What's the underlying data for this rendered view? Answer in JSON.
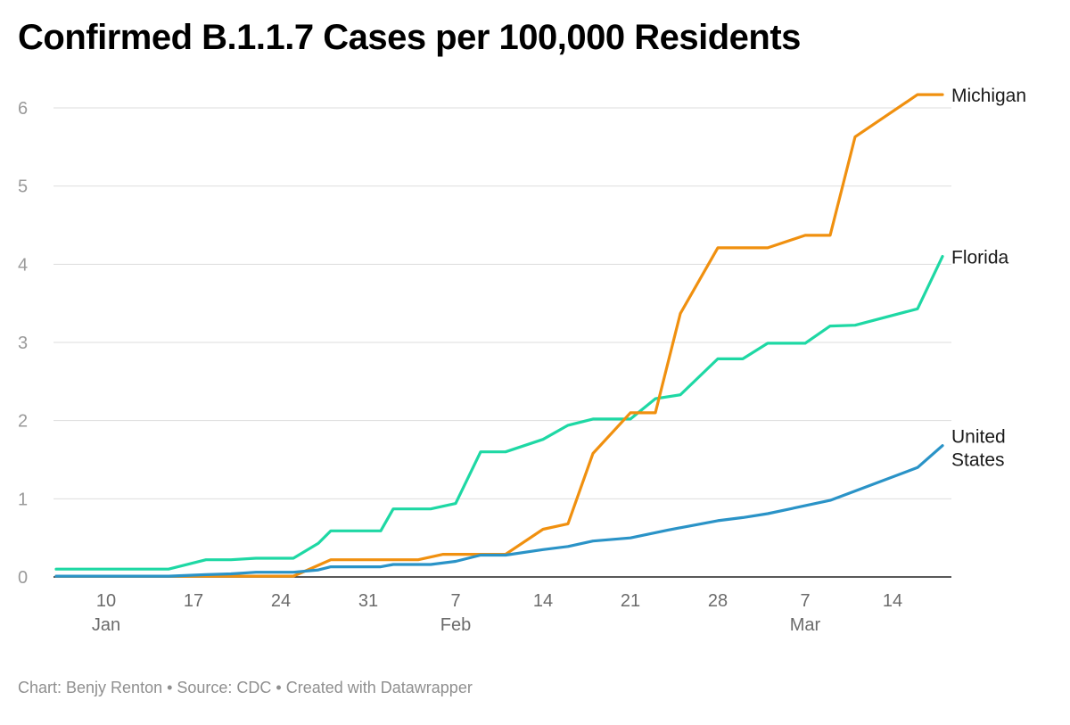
{
  "chart_data": {
    "type": "line",
    "title": "Confirmed B.1.1.7 Cases per 100,000 Residents",
    "xlabel": "",
    "ylabel": "",
    "ylim": [
      0,
      6
    ],
    "yticks": [
      0,
      1,
      2,
      3,
      4,
      5,
      6
    ],
    "xticks": [
      {
        "date": "2021-01-10",
        "label": "10"
      },
      {
        "date": "2021-01-17",
        "label": "17"
      },
      {
        "date": "2021-01-24",
        "label": "24"
      },
      {
        "date": "2021-01-31",
        "label": "31"
      },
      {
        "date": "2021-02-07",
        "label": "7"
      },
      {
        "date": "2021-02-14",
        "label": "14"
      },
      {
        "date": "2021-02-21",
        "label": "21"
      },
      {
        "date": "2021-02-28",
        "label": "28"
      },
      {
        "date": "2021-03-07",
        "label": "7"
      },
      {
        "date": "2021-03-14",
        "label": "14"
      }
    ],
    "months": [
      {
        "date": "2021-01-10",
        "label": "Jan"
      },
      {
        "date": "2021-02-07",
        "label": "Feb"
      },
      {
        "date": "2021-03-07",
        "label": "Mar"
      }
    ],
    "grid": true,
    "series": [
      {
        "name": "Michigan",
        "color": "#f0900f",
        "points": [
          [
            "2021-01-06",
            0.01
          ],
          [
            "2021-01-25",
            0.01
          ],
          [
            "2021-01-27",
            0.15
          ],
          [
            "2021-01-28",
            0.22
          ],
          [
            "2021-02-04",
            0.22
          ],
          [
            "2021-02-06",
            0.29
          ],
          [
            "2021-02-11",
            0.29
          ],
          [
            "2021-02-14",
            0.61
          ],
          [
            "2021-02-16",
            0.68
          ],
          [
            "2021-02-18",
            1.58
          ],
          [
            "2021-02-21",
            2.1
          ],
          [
            "2021-02-23",
            2.1
          ],
          [
            "2021-02-25",
            3.37
          ],
          [
            "2021-02-28",
            4.21
          ],
          [
            "2021-03-04",
            4.21
          ],
          [
            "2021-03-07",
            4.37
          ],
          [
            "2021-03-09",
            4.37
          ],
          [
            "2021-03-11",
            5.63
          ],
          [
            "2021-03-16",
            6.17
          ],
          [
            "2021-03-18",
            6.17
          ]
        ]
      },
      {
        "name": "Florida",
        "color": "#1ed8a4",
        "points": [
          [
            "2021-01-06",
            0.1
          ],
          [
            "2021-01-15",
            0.1
          ],
          [
            "2021-01-18",
            0.22
          ],
          [
            "2021-01-20",
            0.22
          ],
          [
            "2021-01-22",
            0.24
          ],
          [
            "2021-01-25",
            0.24
          ],
          [
            "2021-01-27",
            0.43
          ],
          [
            "2021-01-28",
            0.59
          ],
          [
            "2021-02-01",
            0.59
          ],
          [
            "2021-02-02",
            0.87
          ],
          [
            "2021-02-05",
            0.87
          ],
          [
            "2021-02-07",
            0.94
          ],
          [
            "2021-02-09",
            1.6
          ],
          [
            "2021-02-11",
            1.6
          ],
          [
            "2021-02-14",
            1.76
          ],
          [
            "2021-02-16",
            1.94
          ],
          [
            "2021-02-18",
            2.02
          ],
          [
            "2021-02-21",
            2.02
          ],
          [
            "2021-02-23",
            2.28
          ],
          [
            "2021-02-25",
            2.33
          ],
          [
            "2021-02-28",
            2.79
          ],
          [
            "2021-03-02",
            2.79
          ],
          [
            "2021-03-04",
            2.99
          ],
          [
            "2021-03-07",
            2.99
          ],
          [
            "2021-03-09",
            3.21
          ],
          [
            "2021-03-11",
            3.22
          ],
          [
            "2021-03-16",
            3.43
          ],
          [
            "2021-03-18",
            4.1
          ]
        ]
      },
      {
        "name": "United States",
        "label_lines": [
          "United",
          "States"
        ],
        "color": "#2a93c7",
        "points": [
          [
            "2021-01-06",
            0.01
          ],
          [
            "2021-01-15",
            0.01
          ],
          [
            "2021-01-18",
            0.03
          ],
          [
            "2021-01-20",
            0.04
          ],
          [
            "2021-01-22",
            0.06
          ],
          [
            "2021-01-25",
            0.06
          ],
          [
            "2021-01-27",
            0.09
          ],
          [
            "2021-01-28",
            0.13
          ],
          [
            "2021-02-01",
            0.13
          ],
          [
            "2021-02-02",
            0.16
          ],
          [
            "2021-02-05",
            0.16
          ],
          [
            "2021-02-07",
            0.2
          ],
          [
            "2021-02-09",
            0.28
          ],
          [
            "2021-02-11",
            0.28
          ],
          [
            "2021-02-14",
            0.35
          ],
          [
            "2021-02-16",
            0.39
          ],
          [
            "2021-02-18",
            0.46
          ],
          [
            "2021-02-21",
            0.5
          ],
          [
            "2021-02-24",
            0.6
          ],
          [
            "2021-02-28",
            0.72
          ],
          [
            "2021-03-02",
            0.76
          ],
          [
            "2021-03-04",
            0.81
          ],
          [
            "2021-03-09",
            0.98
          ],
          [
            "2021-03-11",
            1.1
          ],
          [
            "2021-03-16",
            1.4
          ],
          [
            "2021-03-18",
            1.68
          ]
        ]
      }
    ],
    "footer": "Chart: Benjy Renton • Source: CDC • Created with Datawrapper"
  }
}
